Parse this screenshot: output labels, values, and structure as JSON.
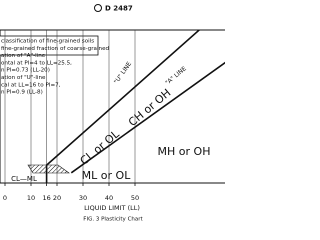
{
  "header": {
    "designation": "D 2487"
  },
  "chart_data": {
    "type": "line",
    "note_lines": [
      "classification of fine-grained soils",
      "fine-grained fraction of coarse-grained",
      "ation of \"A\"-line",
      "ontal at PI=4 to LL=25.5,",
      "n PI=0.73 (LL-20)",
      "ation of \"U\"-line",
      "cal at LL=16 to PI=7,",
      "n PI=0.9 (LL-8)"
    ],
    "series": [
      {
        "name": "\"A\" LINE",
        "color": "#111111",
        "x": [
          25.5,
          90
        ],
        "values": [
          4,
          51.1
        ]
      },
      {
        "name": "\"U\" LINE",
        "color": "#111111",
        "x": [
          16,
          16,
          80
        ],
        "values": [
          0,
          7,
          64.8
        ]
      }
    ],
    "regions": [
      "CH or OH",
      "CL or OL",
      "MH or OH",
      "ML or OL",
      "CL—ML"
    ],
    "xlabel": "LIQUID LIMIT (LL)",
    "caption": "FIG. 3  Plasticity Chart",
    "xlim": [
      0,
      84
    ],
    "ylim": [
      0,
      60
    ],
    "xticks": [
      0,
      10,
      16,
      20,
      30,
      40,
      50
    ],
    "grid": true
  }
}
